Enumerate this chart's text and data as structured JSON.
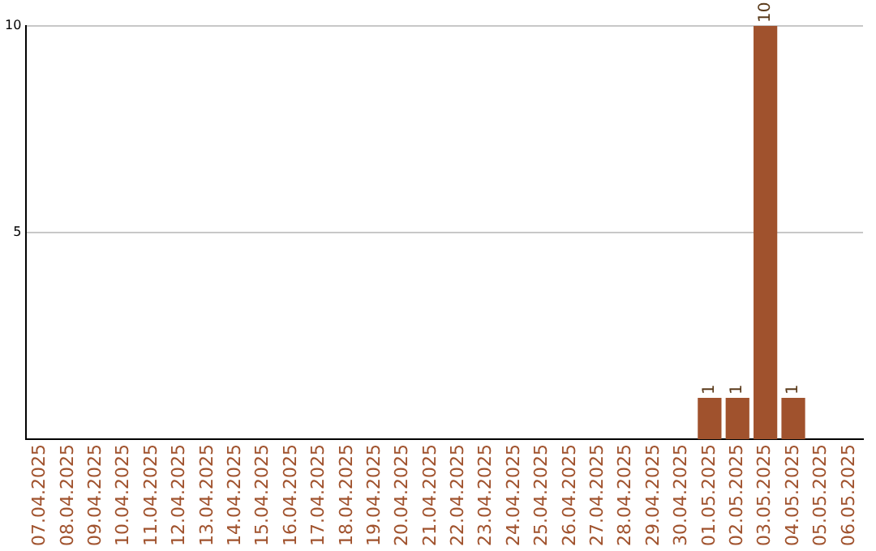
{
  "chart_data": {
    "type": "bar",
    "categories": [
      "07.04.2025",
      "08.04.2025",
      "09.04.2025",
      "10.04.2025",
      "11.04.2025",
      "12.04.2025",
      "13.04.2025",
      "14.04.2025",
      "15.04.2025",
      "16.04.2025",
      "17.04.2025",
      "18.04.2025",
      "19.04.2025",
      "20.04.2025",
      "21.04.2025",
      "22.04.2025",
      "23.04.2025",
      "24.04.2025",
      "25.04.2025",
      "26.04.2025",
      "27.04.2025",
      "28.04.2025",
      "29.04.2025",
      "30.04.2025",
      "01.05.2025",
      "02.05.2025",
      "03.05.2025",
      "04.05.2025",
      "05.05.2025",
      "06.05.2025"
    ],
    "values": [
      0,
      0,
      0,
      0,
      0,
      0,
      0,
      0,
      0,
      0,
      0,
      0,
      0,
      0,
      0,
      0,
      0,
      0,
      0,
      0,
      0,
      0,
      0,
      0,
      1,
      1,
      10,
      1,
      0,
      0
    ],
    "value_labels": [
      null,
      null,
      null,
      null,
      null,
      null,
      null,
      null,
      null,
      null,
      null,
      null,
      null,
      null,
      null,
      null,
      null,
      null,
      null,
      null,
      null,
      null,
      null,
      null,
      "1",
      "1",
      "10",
      "1",
      null,
      null
    ],
    "color": "#a0522d",
    "ylim": [
      0,
      10
    ],
    "yticks": [
      5,
      10
    ],
    "grid": "y",
    "legend": false
  }
}
